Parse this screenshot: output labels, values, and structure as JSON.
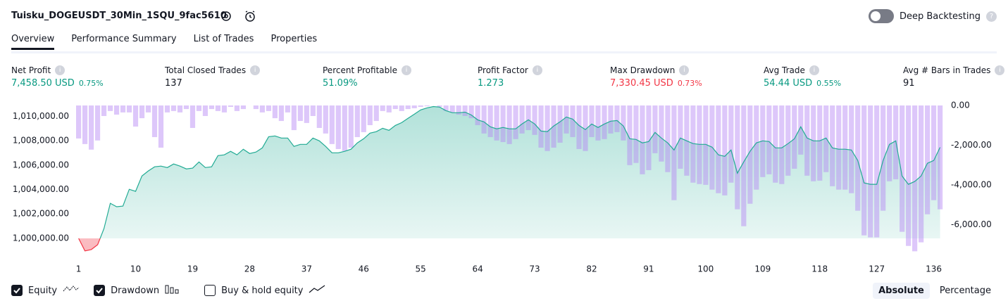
{
  "header": {
    "title": "Tuisku_DOGEUSDT_30Min_1SQU_9fac5610",
    "deep_backtesting": "Deep Backtesting"
  },
  "tabs": [
    "Overview",
    "Performance Summary",
    "List of Trades",
    "Properties"
  ],
  "stats": [
    {
      "label": "Net Profit",
      "value": "7,458.50 USD",
      "percent": "0.75%",
      "color": "#089981"
    },
    {
      "label": "Total Closed Trades",
      "value": "137",
      "color": "#131722"
    },
    {
      "label": "Percent Profitable",
      "value": "51.09%",
      "color": "#089981"
    },
    {
      "label": "Profit Factor",
      "value": "1.273",
      "color": "#089981"
    },
    {
      "label": "Max Drawdown",
      "value": "7,330.45 USD",
      "percent": "0.73%",
      "color": "#f23645"
    },
    {
      "label": "Avg Trade",
      "value": "54.44 USD",
      "percent": "0.55%",
      "color": "#089981"
    },
    {
      "label": "Avg # Bars in Trades",
      "value": "91",
      "color": "#131722"
    }
  ],
  "chart_data": {
    "type": "line",
    "x": [
      1,
      2,
      3,
      4,
      5,
      6,
      7,
      8,
      9,
      10,
      11,
      12,
      13,
      14,
      15,
      16,
      17,
      18,
      19,
      20,
      21,
      22,
      23,
      24,
      25,
      26,
      27,
      28,
      29,
      30,
      31,
      32,
      33,
      34,
      35,
      36,
      37,
      38,
      39,
      40,
      41,
      42,
      43,
      44,
      45,
      46,
      47,
      48,
      49,
      50,
      51,
      52,
      53,
      54,
      55,
      56,
      57,
      58,
      59,
      60,
      61,
      62,
      63,
      64,
      65,
      66,
      67,
      68,
      69,
      70,
      71,
      72,
      73,
      74,
      75,
      76,
      77,
      78,
      79,
      80,
      81,
      82,
      83,
      84,
      85,
      86,
      87,
      88,
      89,
      90,
      91,
      92,
      93,
      94,
      95,
      96,
      97,
      98,
      99,
      100,
      101,
      102,
      103,
      104,
      105,
      106,
      107,
      108,
      109,
      110,
      111,
      112,
      113,
      114,
      115,
      116,
      117,
      118,
      119,
      120,
      121,
      122,
      123,
      124,
      125,
      126,
      127,
      128,
      129,
      130,
      131,
      132,
      133,
      134,
      135,
      136,
      137
    ],
    "series": [
      {
        "name": "Equity",
        "color": "#22ab94",
        "negative_color": "#f23645",
        "checked": true,
        "values": [
          1000000,
          998970,
          999080,
          999480,
          1000800,
          1002870,
          1002590,
          1002640,
          1004020,
          1003850,
          1005110,
          1005520,
          1005860,
          1005920,
          1005800,
          1006090,
          1005920,
          1005690,
          1005750,
          1006260,
          1005800,
          1005860,
          1006780,
          1006840,
          1007130,
          1006840,
          1007300,
          1006950,
          1007070,
          1007410,
          1008330,
          1008390,
          1008220,
          1008220,
          1007530,
          1007700,
          1007700,
          1008220,
          1007990,
          1007530,
          1007010,
          1007010,
          1007130,
          1007300,
          1007820,
          1008160,
          1008620,
          1008740,
          1009020,
          1008850,
          1009250,
          1009480,
          1009830,
          1010170,
          1010520,
          1010690,
          1010800,
          1010750,
          1010460,
          1010290,
          1010290,
          1010340,
          1010110,
          1009710,
          1009540,
          1009140,
          1008970,
          1009080,
          1008970,
          1008970,
          1009370,
          1009710,
          1009370,
          1008790,
          1008740,
          1009200,
          1009540,
          1009940,
          1009770,
          1009250,
          1008910,
          1009370,
          1009080,
          1009370,
          1009600,
          1009650,
          1009200,
          1008160,
          1008100,
          1007820,
          1007930,
          1008680,
          1008220,
          1007820,
          1007240,
          1008220,
          1007990,
          1007760,
          1007700,
          1007700,
          1007470,
          1006840,
          1006720,
          1007240,
          1005340,
          1006260,
          1007130,
          1007820,
          1007990,
          1007930,
          1007410,
          1007410,
          1007760,
          1008160,
          1009140,
          1008220,
          1007990,
          1007990,
          1008220,
          1007410,
          1007300,
          1007300,
          1007240,
          1006380,
          1004540,
          1004430,
          1004430,
          1006380,
          1007700,
          1007990,
          1005110,
          1004430,
          1004660,
          1005110,
          1006150,
          1006380,
          1007458.5
        ]
      },
      {
        "name": "Drawdown",
        "color": "rgba(180,130,245,0.45)",
        "axis": "y2",
        "checked": true,
        "values": [
          -1660,
          -1940,
          -2220,
          -1760,
          -530,
          -280,
          -460,
          -350,
          -350,
          -1060,
          -640,
          -350,
          -1590,
          -2120,
          -350,
          -280,
          -350,
          -180,
          -1130,
          -280,
          -530,
          -180,
          -280,
          -350,
          -70,
          -280,
          -180,
          0,
          -180,
          -350,
          -280,
          -640,
          -780,
          -350,
          -1240,
          -780,
          -880,
          -530,
          -1130,
          -1410,
          -1940,
          -2190,
          -2290,
          -2120,
          -1590,
          -1340,
          -990,
          -780,
          -280,
          -350,
          -180,
          -280,
          -180,
          -140,
          -70,
          -40,
          0,
          -70,
          -280,
          -350,
          -460,
          -530,
          -640,
          -990,
          -1410,
          -1590,
          -1760,
          -1840,
          -1940,
          -1690,
          -1410,
          -1240,
          -1480,
          -2120,
          -2290,
          -2120,
          -1870,
          -1410,
          -1590,
          -2190,
          -2290,
          -1590,
          -1760,
          -1690,
          -1410,
          -1340,
          -1760,
          -3000,
          -2890,
          -3460,
          -3250,
          -2400,
          -2820,
          -3350,
          -4760,
          -3180,
          -3530,
          -3880,
          -3950,
          -3990,
          -4230,
          -4410,
          -4520,
          -3880,
          -5220,
          -6070,
          -4940,
          -4230,
          -3600,
          -3460,
          -3880,
          -3950,
          -3530,
          -3180,
          -2470,
          -3530,
          -3810,
          -3780,
          -3350,
          -4060,
          -4230,
          -4230,
          -4410,
          -5290,
          -6530,
          -6630,
          -6630,
          -5290,
          -3810,
          -3710,
          -6350,
          -7060,
          -7330.45,
          -6880,
          -5470,
          -4760,
          -5220
        ]
      }
    ],
    "buy_hold": {
      "name": "Buy & hold equity",
      "checked": false
    },
    "xlim": [
      0.6,
      137.6
    ],
    "xticks": [
      1,
      10,
      19,
      28,
      37,
      46,
      55,
      64,
      73,
      82,
      91,
      100,
      109,
      118,
      127,
      136
    ],
    "ylim": [
      998500,
      1011000
    ],
    "yticks": [
      {
        "value": 1000000,
        "label": "1,000,000.00"
      },
      {
        "value": 1002000,
        "label": "1,002,000.00"
      },
      {
        "value": 1004000,
        "label": "1,004,000.00"
      },
      {
        "value": 1006000,
        "label": "1,006,000.00"
      },
      {
        "value": 1008000,
        "label": "1,008,000.00"
      },
      {
        "value": 1010000,
        "label": "1,010,000.00"
      }
    ],
    "y2lim": [
      -7600,
      70
    ],
    "y2ticks": [
      {
        "value": 0,
        "label": "0.00"
      },
      {
        "value": -2000,
        "label": "-2,000.00"
      },
      {
        "value": -4000,
        "label": "-4,000.00"
      },
      {
        "value": -6000,
        "label": "-6,000.00"
      }
    ]
  },
  "modes": [
    "Absolute",
    "Percentage"
  ]
}
